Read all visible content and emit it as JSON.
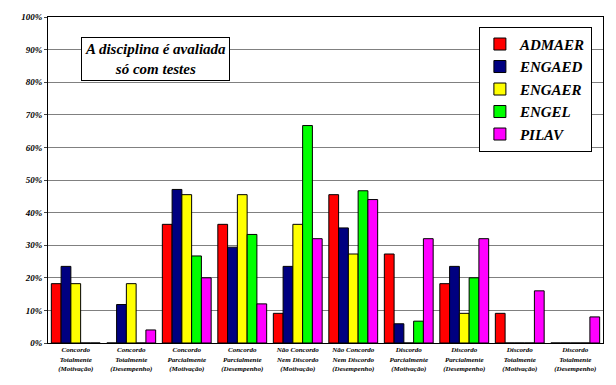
{
  "chart_data": {
    "type": "bar",
    "title": "A disciplina é avaliada só com testes",
    "categories": [
      "Concordo Totalmente (Motivação)",
      "Concordo Totalmente (Desempenho)",
      "Concordo Parcialmente (Motivação)",
      "Concordo Parcialmente (Desempenho)",
      "Não Concordo Nem Discordo (Motivação)",
      "Não Concordo Nem Discordo (Desempenho)",
      "Discordo Parcialmente (Motivação)",
      "Discordo Parcialmente (Desempenho)",
      "Discordo Totalmente (Motivação)",
      "Discordo Totalmente (Desempenho)"
    ],
    "series": [
      {
        "name": "ADMAER",
        "color": "#ff0000",
        "values": [
          18.2,
          0,
          36.4,
          36.4,
          9.1,
          45.5,
          27.3,
          18.2,
          9.1,
          0
        ]
      },
      {
        "name": "ENGAED",
        "color": "#000080",
        "values": [
          23.5,
          11.8,
          47.1,
          29.4,
          23.5,
          35.3,
          5.9,
          23.5,
          0,
          0
        ]
      },
      {
        "name": "ENGAER",
        "color": "#ffff00",
        "values": [
          18.2,
          18.2,
          45.5,
          45.5,
          36.4,
          27.3,
          0,
          9.1,
          0,
          0
        ]
      },
      {
        "name": "ENGEL",
        "color": "#00ff00",
        "values": [
          0,
          0,
          26.7,
          33.3,
          66.7,
          46.7,
          6.7,
          20,
          0,
          0
        ]
      },
      {
        "name": "PILAV",
        "color": "#ff00ff",
        "values": [
          0,
          4,
          20,
          12,
          32,
          44,
          32,
          32,
          16,
          8
        ]
      }
    ],
    "ylim": [
      0,
      100
    ],
    "yticks": [
      {
        "value": 0,
        "label": "0%"
      },
      {
        "value": 10,
        "label": "10%"
      },
      {
        "value": 20,
        "label": "20%"
      },
      {
        "value": 30,
        "label": "30%"
      },
      {
        "value": 40,
        "label": "40%"
      },
      {
        "value": 50,
        "label": "50%"
      },
      {
        "value": 60,
        "label": "60%"
      },
      {
        "value": 70,
        "label": "70%"
      },
      {
        "value": 80,
        "label": "80%"
      },
      {
        "value": 90,
        "label": "90%"
      },
      {
        "value": 100,
        "label": "100%"
      }
    ],
    "grid": true,
    "legend": "top right"
  }
}
